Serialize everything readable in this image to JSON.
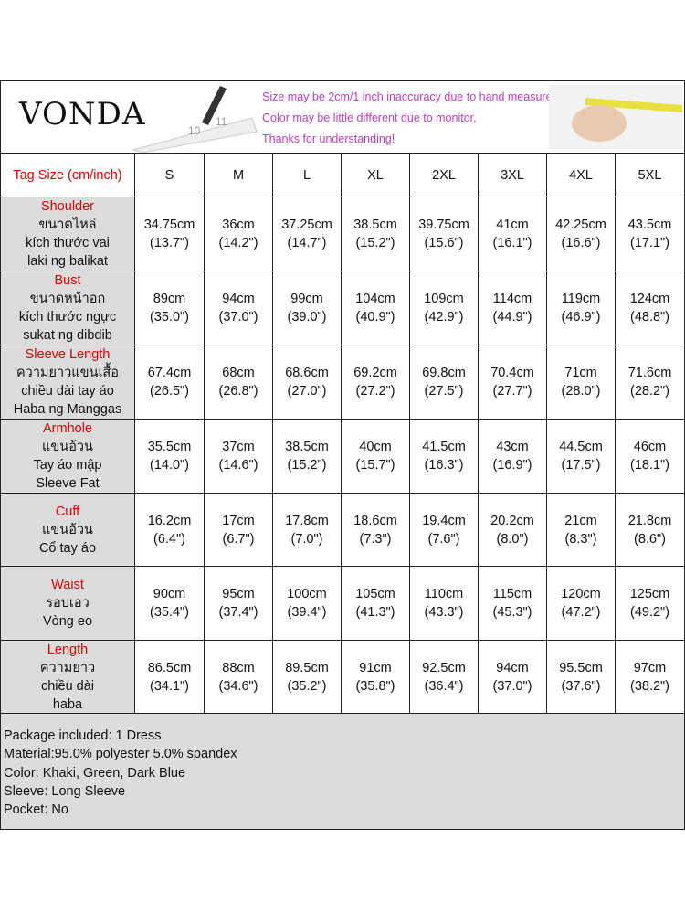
{
  "header": {
    "logo": "VONDA",
    "notes": [
      "Size may be 2cm/1 inch inaccuracy due to hand measure,",
      "Color may be little different due to monitor,",
      "Thanks for understanding!"
    ]
  },
  "table": {
    "columns": [
      "Tag Size (cm/inch)",
      "S",
      "M",
      "L",
      "XL",
      "2XL",
      "3XL",
      "4XL",
      "5XL"
    ],
    "rows": [
      {
        "label": [
          "Shoulder",
          "ขนาดไหล่",
          "kích thước vai",
          "laki ng balikat"
        ],
        "cells": [
          [
            "34.75cm",
            "(13.7\")"
          ],
          [
            "36cm",
            "(14.2\")"
          ],
          [
            "37.25cm",
            "(14.7\")"
          ],
          [
            "38.5cm",
            "(15.2\")"
          ],
          [
            "39.75cm",
            "(15.6\")"
          ],
          [
            "41cm",
            "(16.1\")"
          ],
          [
            "42.25cm",
            "(16.6\")"
          ],
          [
            "43.5cm",
            "(17.1\")"
          ]
        ]
      },
      {
        "label": [
          "Bust",
          "ขนาดหน้าอก",
          "kích thước ngực",
          "sukat ng dibdib"
        ],
        "cells": [
          [
            "89cm",
            "(35.0\")"
          ],
          [
            "94cm",
            "(37.0\")"
          ],
          [
            "99cm",
            "(39.0\")"
          ],
          [
            "104cm",
            "(40.9\")"
          ],
          [
            "109cm",
            "(42.9\")"
          ],
          [
            "114cm",
            "(44.9\")"
          ],
          [
            "119cm",
            "(46.9\")"
          ],
          [
            "124cm",
            "(48.8\")"
          ]
        ]
      },
      {
        "label": [
          "Sleeve Length",
          "ความยาวแขนเสื้อ",
          "chiều dài tay áo",
          "Haba ng Manggas"
        ],
        "cells": [
          [
            "67.4cm",
            "(26.5\")"
          ],
          [
            "68cm",
            "(26.8\")"
          ],
          [
            "68.6cm",
            "(27.0\")"
          ],
          [
            "69.2cm",
            "(27.2\")"
          ],
          [
            "69.8cm",
            "(27.5\")"
          ],
          [
            "70.4cm",
            "(27.7\")"
          ],
          [
            "71cm",
            "(28.0\")"
          ],
          [
            "71.6cm",
            "(28.2\")"
          ]
        ]
      },
      {
        "label": [
          "Armhole",
          "แขนอ้วน",
          "Tay áo mập",
          "Sleeve Fat"
        ],
        "cells": [
          [
            "35.5cm",
            "(14.0\")"
          ],
          [
            "37cm",
            "(14.6\")"
          ],
          [
            "38.5cm",
            "(15.2\")"
          ],
          [
            "40cm",
            "(15.7\")"
          ],
          [
            "41.5cm",
            "(16.3\")"
          ],
          [
            "43cm",
            "(16.9\")"
          ],
          [
            "44.5cm",
            "(17.5\")"
          ],
          [
            "46cm",
            "(18.1\")"
          ]
        ]
      },
      {
        "label": [
          "Cuff",
          "แขนอ้วน",
          "Cổ tay áo"
        ],
        "cells": [
          [
            "16.2cm",
            "(6.4\")"
          ],
          [
            "17cm",
            "(6.7\")"
          ],
          [
            "17.8cm",
            "(7.0\")"
          ],
          [
            "18.6cm",
            "(7.3\")"
          ],
          [
            "19.4cm",
            "(7.6\")"
          ],
          [
            "20.2cm",
            "(8.0\")"
          ],
          [
            "21cm",
            "(8.3\")"
          ],
          [
            "21.8cm",
            "(8.6\")"
          ]
        ]
      },
      {
        "label": [
          "Waist",
          "รอบเอว",
          "Vòng eo"
        ],
        "cells": [
          [
            "90cm",
            "(35.4\")"
          ],
          [
            "95cm",
            "(37.4\")"
          ],
          [
            "100cm",
            "(39.4\")"
          ],
          [
            "105cm",
            "(41.3\")"
          ],
          [
            "110cm",
            "(43.3\")"
          ],
          [
            "115cm",
            "(45.3\")"
          ],
          [
            "120cm",
            "(47.2\")"
          ],
          [
            "125cm",
            "(49.2\")"
          ]
        ]
      },
      {
        "label": [
          "Length",
          "ความยาว",
          "chiều dài",
          "haba"
        ],
        "cells": [
          [
            "86.5cm",
            "(34.1\")"
          ],
          [
            "88cm",
            "(34.6\")"
          ],
          [
            "89.5cm",
            "(35.2\")"
          ],
          [
            "91cm",
            "(35.8\")"
          ],
          [
            "92.5cm",
            "(36.4\")"
          ],
          [
            "94cm",
            "(37.0\")"
          ],
          [
            "95.5cm",
            "(37.6\")"
          ],
          [
            "97cm",
            "(38.2\")"
          ]
        ]
      }
    ]
  },
  "footer": [
    "Package included: 1 Dress",
    "Material:95.0% polyester 5.0% spandex",
    "Color: Khaki, Green, Dark Blue",
    "Sleeve: Long Sleeve",
    "Pocket: No"
  ]
}
